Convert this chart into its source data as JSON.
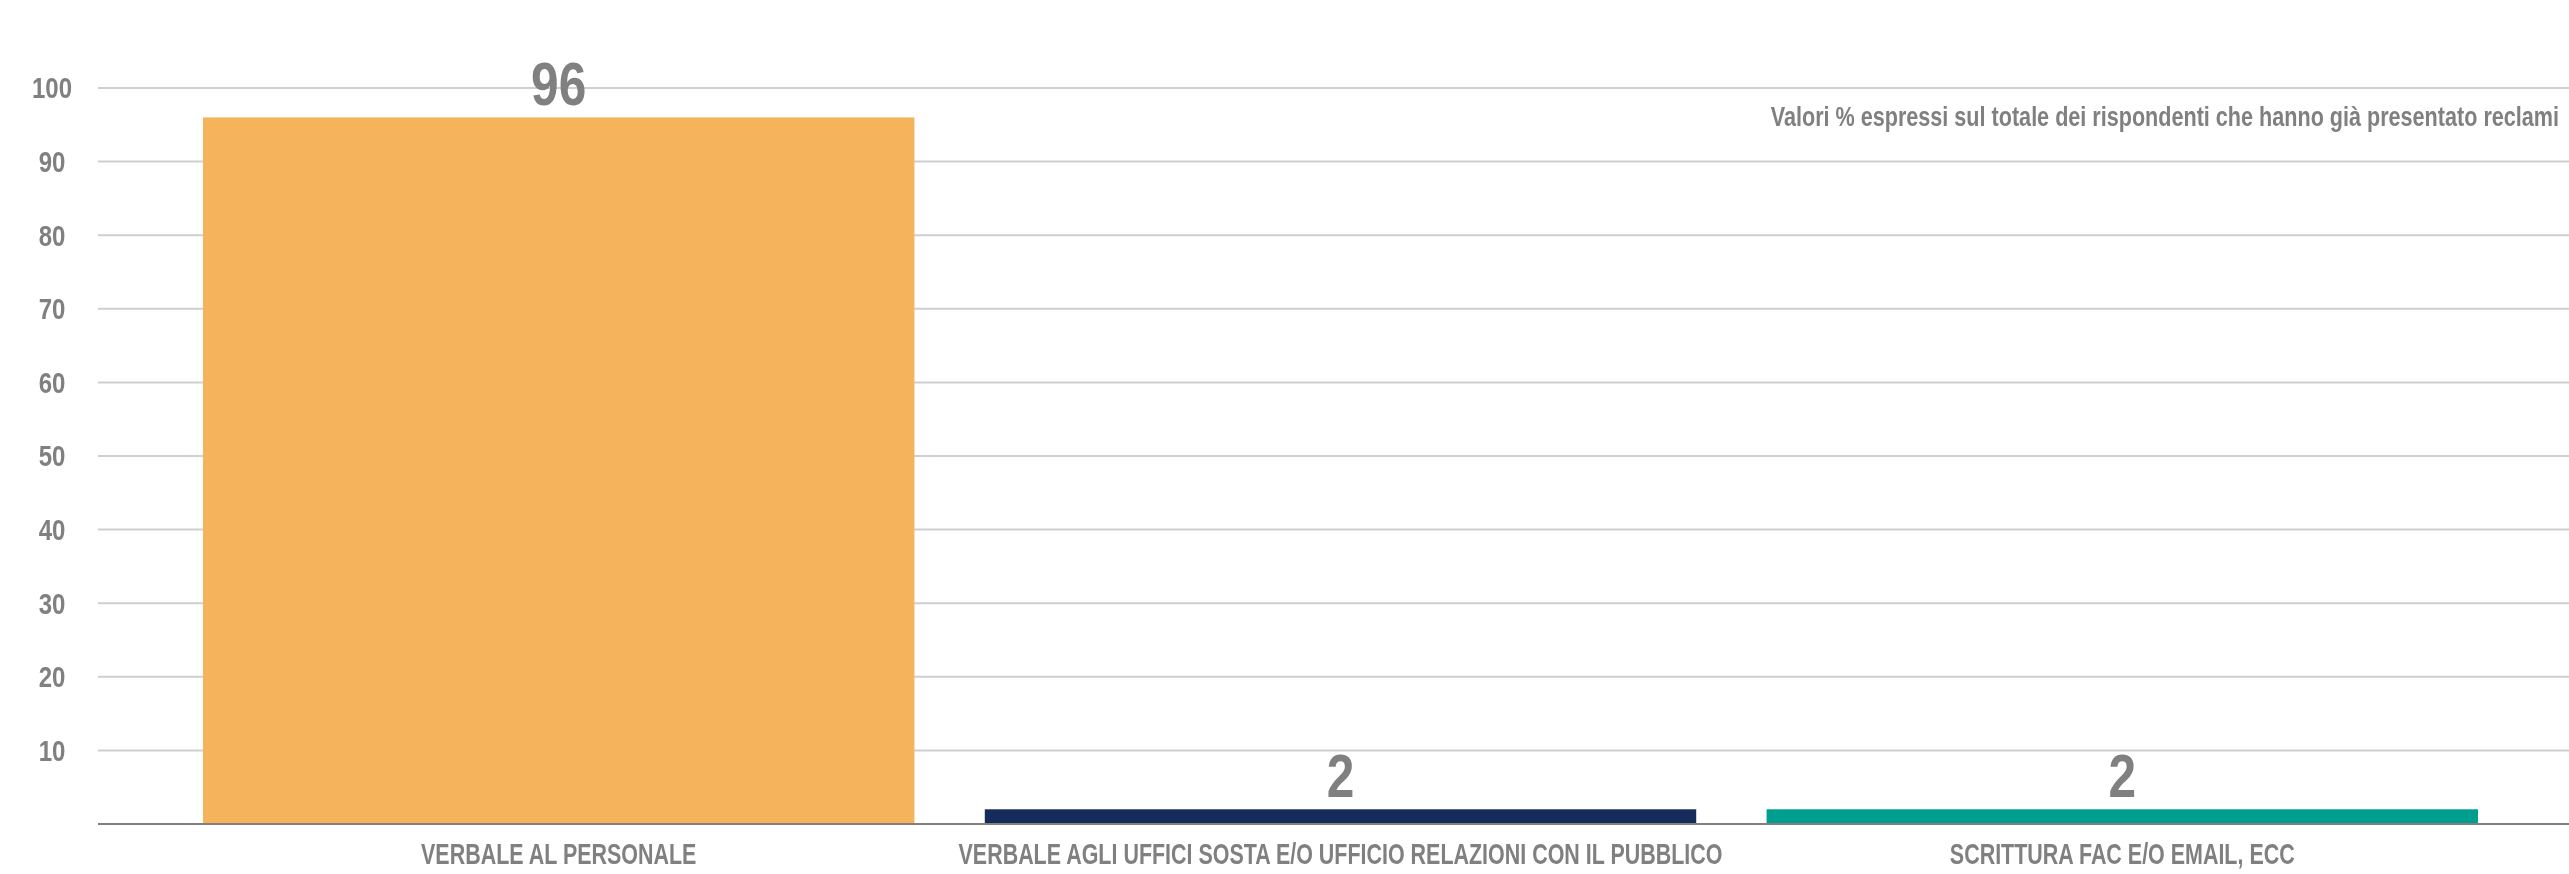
{
  "chart_data": {
    "type": "bar",
    "categories": [
      "VERBALE AL PERSONALE",
      "VERBALE AGLI UFFICI SOSTA E/O UFFICIO RELAZIONI CON IL PUBBLICO",
      "SCRITTURA FAC E/O EMAIL, ECC"
    ],
    "values": [
      96,
      2,
      2
    ],
    "colors": [
      "#f5b35c",
      "#152c5b",
      "#009e8e"
    ],
    "ylim": [
      0,
      100
    ],
    "yticks": [
      {
        "value": 0,
        "label": null
      },
      10,
      20,
      30,
      40,
      50,
      60,
      70,
      80,
      90,
      100
    ],
    "grid": "y",
    "data_labels": true,
    "annotations": [
      "Valori %  espressi sul totale dei rispondenti che hanno già presentato reclami"
    ]
  }
}
